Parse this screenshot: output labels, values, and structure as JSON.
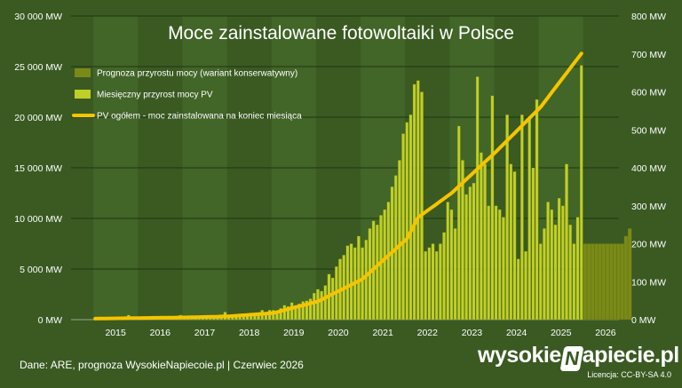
{
  "chart_data": {
    "type": "bar",
    "title": "Moce zainstalowane fotowoltaiki w Polsce",
    "y_left_ticks": [
      "0 MW",
      "5 000 MW",
      "10 000 MW",
      "15 000 MW",
      "20 000 MW",
      "25 000 MW",
      "30 000 MW"
    ],
    "y_left_range": [
      0,
      30000
    ],
    "y_right_ticks": [
      "0 MW",
      "100 MW",
      "200 MW",
      "300 MW",
      "400 MW",
      "500 MW",
      "600 MW",
      "700 MW",
      "800 MW"
    ],
    "y_right_range": [
      0,
      800
    ],
    "x_ticks": [
      "2015",
      "2016",
      "2017",
      "2018",
      "2019",
      "2020",
      "2021",
      "2022",
      "2023",
      "2024",
      "2025",
      "2026"
    ],
    "x_range": [
      2014.5,
      2026.8
    ],
    "grid": "horizontal, alternating year bands",
    "legend_position": "top-left",
    "legend": [
      {
        "label": "Prognoza przyrostu mocy (wariant konserwatywny)",
        "color": "#7a8a18",
        "kind": "box"
      },
      {
        "label": "Miesięczny przyrost mocy PV",
        "color": "#bfcf28",
        "kind": "box"
      },
      {
        "label": "PV ogółem - moc zainstalowana na koniec miesiąca",
        "color": "#f5c400",
        "kind": "line"
      }
    ],
    "series": [
      {
        "name": "Miesięczny przyrost mocy PV",
        "axis": "right",
        "color": "#bfcf28",
        "start": "2015-01",
        "values": [
          3,
          3,
          5,
          4,
          3,
          7,
          3,
          4,
          3,
          12,
          4,
          3,
          4,
          4,
          6,
          5,
          5,
          8,
          4,
          5,
          6,
          7,
          6,
          12,
          6,
          6,
          8,
          7,
          7,
          10,
          8,
          9,
          9,
          10,
          10,
          20,
          10,
          10,
          12,
          12,
          12,
          15,
          14,
          15,
          17,
          25,
          18,
          25,
          25,
          20,
          30,
          38,
          35,
          45,
          38,
          42,
          48,
          50,
          55,
          70,
          80,
          75,
          90,
          120,
          110,
          140,
          160,
          170,
          195,
          200,
          190,
          220,
          190,
          210,
          240,
          260,
          250,
          275,
          290,
          310,
          350,
          380,
          420,
          490,
          520,
          540,
          620,
          630,
          600,
          180,
          190,
          200,
          180,
          200,
          230,
          310,
          290,
          240,
          510,
          420,
          330,
          350,
          360,
          640,
          440,
          410,
          300,
          590,
          300,
          290,
          270,
          540,
          410,
          390,
          160,
          540,
          180,
          530,
          400,
          580,
          200,
          240,
          310,
          290,
          250,
          320,
          300,
          410,
          250,
          200,
          270,
          670
        ],
        "forecast_start": "2026-01",
        "forecast_values": [
          200,
          200,
          200,
          200,
          200,
          200,
          200,
          200,
          200,
          200,
          200,
          220,
          240
        ]
      },
      {
        "name": "PV ogółem - moc zainstalowana na koniec miesiąca",
        "axis": "left",
        "color": "#f5c400",
        "start": "2015-01",
        "end": "2025-12",
        "anchors": [
          {
            "date": "2015-01",
            "value": 100
          },
          {
            "date": "2016-01",
            "value": 160
          },
          {
            "date": "2017-01",
            "value": 220
          },
          {
            "date": "2018-01",
            "value": 330
          },
          {
            "date": "2019-01",
            "value": 650
          },
          {
            "date": "2020-01",
            "value": 1800
          },
          {
            "date": "2021-01",
            "value": 4000
          },
          {
            "date": "2022-01",
            "value": 8000
          },
          {
            "date": "2022-04",
            "value": 10100
          },
          {
            "date": "2023-01",
            "value": 12500
          },
          {
            "date": "2024-01",
            "value": 16600
          },
          {
            "date": "2025-01",
            "value": 21000
          },
          {
            "date": "2025-12",
            "value": 26300
          }
        ]
      }
    ]
  },
  "footer": {
    "source": "Dane: ARE, prognoza WysokieNapiecoie.pl  |  Czerwiec 2026",
    "brand_left": "wysokie",
    "brand_logo": "N",
    "brand_right": "apiecie.pl",
    "license": "Licencja: CC-BY-SA 4.0"
  },
  "colors": {
    "background": "#3a5a22",
    "band_dark": "#3a5a22",
    "band_light": "#426528",
    "forecast": "#7a8a18",
    "bars": "#bfcf28",
    "line": "#f5c400"
  }
}
